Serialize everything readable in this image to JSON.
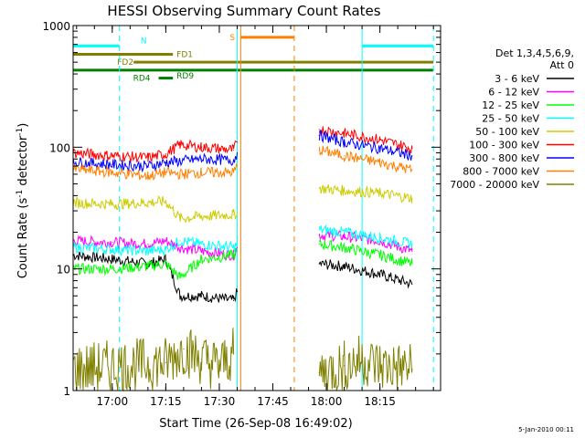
{
  "chart_data": {
    "type": "line",
    "title": "HESSI Observing Summary Count Rates",
    "xlabel": "Start Time (26-Sep-08 16:49:02)",
    "ylabel_main": "Count Rate (s",
    "ylabel_sup1": "-1",
    "ylabel_mid": " detector",
    "ylabel_sup2": "-1",
    "ylabel_end": ")",
    "footer": "5-Jan-2010 00:11",
    "y_scale": "log",
    "ylim": [
      1,
      1000
    ],
    "xlim": [
      "16:49:02",
      "18:32:00"
    ],
    "x_ticks": [
      {
        "t": "17:00",
        "label": "17:00"
      },
      {
        "t": "17:15",
        "label": "17:15"
      },
      {
        "t": "17:30",
        "label": "17:30"
      },
      {
        "t": "17:45",
        "label": "17:45"
      },
      {
        "t": "18:00",
        "label": "18:00"
      },
      {
        "t": "18:15",
        "label": "18:15"
      }
    ],
    "y_ticks": [
      {
        "v": 1,
        "label": "1"
      },
      {
        "v": 10,
        "label": "10"
      },
      {
        "v": 100,
        "label": "100"
      },
      {
        "v": 1000,
        "label": "1000"
      }
    ],
    "legend_header": [
      "Det 1,3,4,5,6,9,",
      "Att 0"
    ],
    "series": [
      {
        "name": "3 - 6 keV",
        "color": "#000000",
        "segments": [
          {
            "x": [
              "16:49",
              "17:00",
              "17:10",
              "17:15",
              "17:19",
              "17:25",
              "17:34",
              "17:35"
            ],
            "y": [
              13,
              12,
              11,
              12,
              6,
              6,
              5.5,
              6.5
            ]
          },
          {
            "x": [
              "17:58",
              "18:05",
              "18:15",
              "18:24"
            ],
            "y": [
              11,
              10.5,
              9,
              7.5
            ]
          }
        ]
      },
      {
        "name": "6 - 12 keV",
        "color": "#ff00ff",
        "segments": [
          {
            "x": [
              "16:49",
              "17:00",
              "17:10",
              "17:15",
              "17:19",
              "17:25",
              "17:34",
              "17:35"
            ],
            "y": [
              17,
              16.5,
              16,
              17,
              15,
              14,
              13,
              15
            ]
          },
          {
            "x": [
              "17:58",
              "18:05",
              "18:15",
              "18:24"
            ],
            "y": [
              19,
              18.5,
              17,
              14
            ]
          }
        ]
      },
      {
        "name": "12 - 25 keV",
        "color": "#00ff00",
        "segments": [
          {
            "x": [
              "16:49",
              "17:00",
              "17:10",
              "17:15",
              "17:19",
              "17:25",
              "17:34",
              "17:35"
            ],
            "y": [
              10,
              10,
              10.5,
              11,
              8.5,
              12,
              13,
              14
            ]
          },
          {
            "x": [
              "17:58",
              "18:05",
              "18:15",
              "18:24"
            ],
            "y": [
              16,
              15,
              13,
              11
            ]
          }
        ]
      },
      {
        "name": "25 - 50 keV",
        "color": "#00ffff",
        "segments": [
          {
            "x": [
              "16:49",
              "17:00",
              "17:10",
              "17:15",
              "17:19",
              "17:25",
              "17:34",
              "17:35"
            ],
            "y": [
              15,
              14.5,
              14,
              14.5,
              17,
              16,
              15,
              16
            ]
          },
          {
            "x": [
              "17:58",
              "18:05",
              "18:15",
              "18:24"
            ],
            "y": [
              21,
              20,
              18,
              16
            ]
          }
        ]
      },
      {
        "name": "50 - 100 keV",
        "color": "#cccc00",
        "segments": [
          {
            "x": [
              "16:49",
              "17:00",
              "17:10",
              "17:15",
              "17:19",
              "17:25",
              "17:34",
              "17:35"
            ],
            "y": [
              35,
              34,
              35,
              36,
              26,
              27,
              28,
              29
            ]
          },
          {
            "x": [
              "17:58",
              "18:05",
              "18:15",
              "18:24"
            ],
            "y": [
              46,
              44,
              42,
              38
            ]
          }
        ]
      },
      {
        "name": "100 - 300 keV",
        "color": "#ff0000",
        "segments": [
          {
            "x": [
              "16:49",
              "17:00",
              "17:10",
              "17:15",
              "17:19",
              "17:25",
              "17:34",
              "17:35"
            ],
            "y": [
              90,
              85,
              82,
              88,
              105,
              100,
              95,
              110
            ]
          },
          {
            "x": [
              "17:58",
              "18:05",
              "18:15",
              "18:24"
            ],
            "y": [
              140,
              130,
              115,
              98
            ]
          }
        ]
      },
      {
        "name": "300 - 800 keV",
        "color": "#0000ff",
        "segments": [
          {
            "x": [
              "16:49",
              "17:00",
              "17:10",
              "17:15",
              "17:19",
              "17:25",
              "17:34",
              "17:35"
            ],
            "y": [
              76,
              72,
              70,
              75,
              77,
              80,
              78,
              90
            ]
          },
          {
            "x": [
              "17:58",
              "18:05",
              "18:15",
              "18:24"
            ],
            "y": [
              125,
              110,
              98,
              85
            ]
          }
        ]
      },
      {
        "name": "800 - 7000 keV",
        "color": "#ff8000",
        "segments": [
          {
            "x": [
              "16:49",
              "17:00",
              "17:10",
              "17:15",
              "17:19",
              "17:25",
              "17:34",
              "17:35"
            ],
            "y": [
              66,
              62,
              58,
              62,
              60,
              62,
              62,
              70
            ]
          },
          {
            "x": [
              "17:58",
              "18:05",
              "18:15",
              "18:24"
            ],
            "y": [
              95,
              85,
              75,
              65
            ]
          }
        ]
      },
      {
        "name": "7000 - 20000 keV",
        "color": "#808000",
        "segments": [
          {
            "x": [
              "16:49",
              "17:15",
              "17:20",
              "17:25",
              "17:30",
              "17:34"
            ],
            "y": [
              1.5,
              1.7,
              2.2,
              1.8,
              1.6,
              2.0
            ]
          },
          {
            "x": [
              "17:58",
              "18:05",
              "18:10",
              "18:15",
              "18:24"
            ],
            "y": [
              1.4,
              1.6,
              1.8,
              1.6,
              1.5
            ]
          }
        ]
      }
    ],
    "flags": [
      {
        "label": "N",
        "color": "#00ffff",
        "y": 680,
        "segments": [
          [
            "16:49",
            "17:02"
          ],
          [
            "18:10",
            "18:30"
          ]
        ]
      },
      {
        "label": "S",
        "color": "#ff8000",
        "y": 800,
        "segments": [
          [
            "17:36",
            "17:51"
          ]
        ]
      },
      {
        "label": "FD1",
        "color": "#808000",
        "y": 580,
        "segments": [
          [
            "16:49",
            "17:17"
          ]
        ]
      },
      {
        "label": "FD2",
        "color": "#808000",
        "y": 500,
        "segments": [
          [
            "17:06",
            "18:30"
          ]
        ]
      },
      {
        "label": "RD9",
        "color": "#008000",
        "y": 430,
        "segments": [
          [
            "16:49",
            "18:30"
          ]
        ]
      },
      {
        "label": "RD4",
        "color": "#008000",
        "y": 370,
        "segments": [
          [
            "17:13",
            "17:17"
          ]
        ]
      }
    ],
    "vlines": [
      {
        "t": "16:49:02",
        "color": "#00ffff",
        "style": "solid"
      },
      {
        "t": "17:02",
        "color": "#00ffff",
        "style": "dashed"
      },
      {
        "t": "17:35",
        "color": "#00ffff",
        "style": "solid"
      },
      {
        "t": "17:36",
        "color": "#ff8000",
        "style": "solid"
      },
      {
        "t": "17:51",
        "color": "#ff8000",
        "style": "dashed"
      },
      {
        "t": "18:10",
        "color": "#00ffff",
        "style": "solid"
      },
      {
        "t": "18:30",
        "color": "#00ffff",
        "style": "dashed"
      }
    ]
  }
}
